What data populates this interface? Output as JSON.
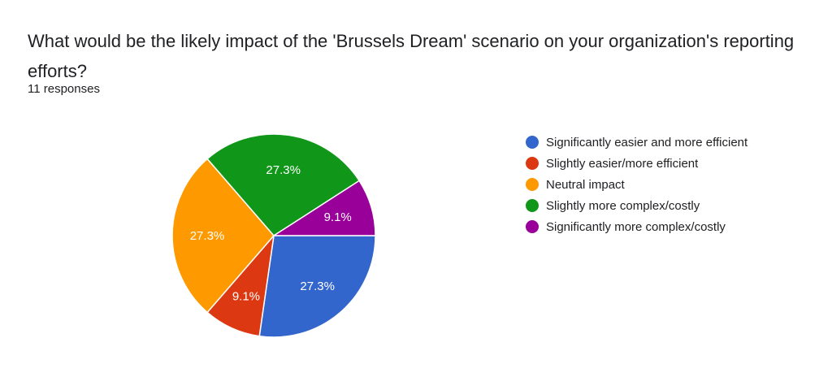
{
  "question": {
    "title": "What would be the likely impact of the 'Brussels Dream' scenario on your organization's reporting efforts?",
    "responses": "11 responses"
  },
  "chart_data": {
    "type": "pie",
    "total": 11,
    "categories": [
      "Significantly easier and more efficient",
      "Slightly easier/more efficient",
      "Neutral impact",
      "Slightly more complex/costly",
      "Significantly more complex/costly"
    ],
    "values": [
      3,
      1,
      3,
      3,
      1
    ],
    "percent_labels": [
      "27.3%",
      "9.1%",
      "27.3%",
      "27.3%",
      "9.1%"
    ],
    "colors": [
      "#3366cc",
      "#dc3912",
      "#ff9900",
      "#109618",
      "#990099"
    ],
    "start": "3 o'clock",
    "direction": "clockwise",
    "legend_position": "right"
  }
}
